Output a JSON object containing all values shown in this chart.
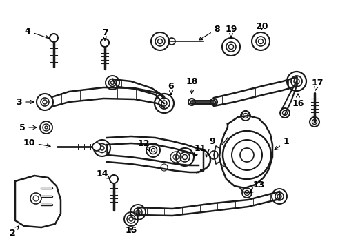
{
  "bg_color": "#ffffff",
  "line_color": "#1a1a1a",
  "label_color": "#000000",
  "fig_width": 4.9,
  "fig_height": 3.6,
  "dpi": 100,
  "arrow_label_fontsize": 9
}
